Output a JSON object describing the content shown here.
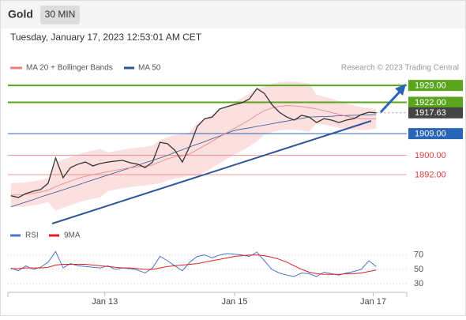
{
  "chart_data": {
    "type": "line",
    "title": "Gold",
    "timeframe": "30 MIN",
    "subtitle": "Tuesday, January 17, 2023 12:53:01 AM CET",
    "credit": "Research © 2023 Trading Central",
    "x": [
      0,
      1,
      2,
      3,
      4,
      5,
      6,
      7,
      8,
      9,
      10,
      11,
      12,
      13,
      14,
      15,
      16,
      17,
      18,
      19,
      20,
      21,
      22,
      23,
      24,
      25,
      26,
      27,
      28,
      29,
      30,
      31,
      32,
      33,
      34,
      35,
      36,
      37,
      38,
      39,
      40,
      41,
      42,
      43,
      44,
      45,
      46,
      47,
      48,
      49
    ],
    "xlim": [
      -0.4,
      53.1
    ],
    "xticks": [
      {
        "value": 12.6,
        "label": "Jan 13"
      },
      {
        "value": 30.0,
        "label": "Jan 15"
      },
      {
        "value": 48.6,
        "label": "Jan 17"
      }
    ],
    "ylim": [
      1871,
      1933.3
    ],
    "price": {
      "color": "#333333",
      "values": [
        1883.2,
        1882.5,
        1884.1,
        1885.1,
        1885.8,
        1888.4,
        1898.9,
        1890.7,
        1894.9,
        1896.3,
        1897.2,
        1895.6,
        1896.6,
        1897.2,
        1897.6,
        1897.9,
        1896.9,
        1896.3,
        1894.9,
        1897.2,
        1905.4,
        1904.8,
        1902.1,
        1897.2,
        1903.8,
        1912.0,
        1915.2,
        1915.9,
        1919.2,
        1920.2,
        1921.1,
        1921.8,
        1923.4,
        1927.7,
        1925.7,
        1921.1,
        1917.9,
        1915.9,
        1914.6,
        1916.6,
        1915.9,
        1913.6,
        1915.2,
        1914.6,
        1913.6,
        1914.6,
        1915.2,
        1916.9,
        1917.9,
        1917.63
      ]
    },
    "ma20": {
      "name": "MA 20 + Bollinger Bands",
      "color": "#f08080",
      "band_color": "#fbd5d5",
      "values": [
        1883.5,
        1883.6,
        1883.8,
        1884.2,
        1884.8,
        1885.6,
        1887.0,
        1888.2,
        1889.3,
        1890.4,
        1891.3,
        1892.0,
        1892.6,
        1893.2,
        1893.8,
        1894.3,
        1894.8,
        1895.2,
        1895.5,
        1896.0,
        1897.3,
        1898.5,
        1899.4,
        1899.8,
        1900.6,
        1902.3,
        1904.1,
        1905.8,
        1907.7,
        1909.5,
        1911.2,
        1912.9,
        1914.7,
        1916.8,
        1918.5,
        1919.6,
        1920.3,
        1920.6,
        1920.5,
        1920.2,
        1919.8,
        1919.2,
        1918.5,
        1917.8,
        1917.0,
        1916.2,
        1915.6,
        1915.2,
        1915.1,
        1915.2
      ],
      "upper": [
        1888.5,
        1888.6,
        1888.8,
        1889.2,
        1889.8,
        1890.6,
        1897.0,
        1898.2,
        1899.3,
        1900.4,
        1901.3,
        1902.0,
        1902.6,
        1901.2,
        1901.8,
        1902.3,
        1902.8,
        1903.2,
        1903.5,
        1904.0,
        1906.3,
        1907.5,
        1908.4,
        1908.8,
        1909.6,
        1913.3,
        1915.1,
        1916.8,
        1918.7,
        1920.5,
        1922.2,
        1923.9,
        1925.7,
        1927.8,
        1928.5,
        1929.6,
        1930.3,
        1930.6,
        1930.5,
        1930.2,
        1929.8,
        1925.2,
        1924.3,
        1923.5,
        1922.5,
        1921.5,
        1920.7,
        1920.0,
        1919.6,
        1919.2
      ],
      "lower": [
        1878.5,
        1878.6,
        1878.8,
        1879.2,
        1879.8,
        1880.6,
        1877.0,
        1878.2,
        1879.3,
        1880.4,
        1881.3,
        1882.0,
        1882.6,
        1885.2,
        1885.8,
        1886.3,
        1886.8,
        1887.2,
        1887.5,
        1888.0,
        1888.3,
        1889.5,
        1890.4,
        1890.8,
        1891.6,
        1891.3,
        1893.1,
        1894.8,
        1896.7,
        1898.5,
        1900.2,
        1901.9,
        1903.7,
        1905.8,
        1908.5,
        1909.6,
        1910.3,
        1910.6,
        1910.5,
        1910.2,
        1909.8,
        1913.2,
        1912.7,
        1912.1,
        1911.5,
        1910.9,
        1910.5,
        1910.4,
        1910.6,
        1911.2
      ]
    },
    "ma50": {
      "name": "MA 50",
      "color": "#2f5597",
      "values": [
        1878.6,
        1879.6,
        1880.6,
        1881.6,
        1882.7,
        1883.7,
        1884.7,
        1885.7,
        1886.7,
        1887.7,
        1888.8,
        1889.8,
        1890.8,
        1891.8,
        1892.8,
        1893.8,
        1894.8,
        1895.9,
        1896.9,
        1897.9,
        1898.9,
        1900.0,
        1901.2,
        1902.3,
        1903.5,
        1904.6,
        1905.7,
        1906.9,
        1908.0,
        1909.2,
        1910.3,
        1910.9,
        1911.4,
        1912.0,
        1912.5,
        1913.1,
        1913.7,
        1914.2,
        1914.8,
        1915.3,
        1915.9,
        1916.0,
        1916.1,
        1916.2,
        1916.4,
        1916.5,
        1916.6,
        1916.7,
        1916.8,
        1916.9
      ]
    },
    "levels": {
      "values": [
        1929,
        1922,
        1917.63,
        1909,
        1900,
        1892
      ],
      "value_labels": [
        "1929.00",
        "1922.00",
        "1917.63",
        "1909.00",
        "1900.00",
        "1892.00"
      ],
      "colors": [
        "#5aa51e",
        "#5aa51e",
        "#444444",
        "#2a66b8",
        "#e04040",
        "#e04040"
      ],
      "label_style": [
        "box",
        "box",
        "box",
        "box",
        "text",
        "text"
      ]
    },
    "rsi": {
      "ylim": [
        18,
        84
      ],
      "yticks": [
        30,
        50,
        70
      ],
      "series": [
        {
          "name": "RSI",
          "color": "#4a72d0",
          "values": [
            52,
            48,
            55,
            50,
            53,
            60,
            75,
            52,
            58,
            55,
            54,
            53,
            52,
            55,
            50,
            52,
            51,
            49,
            45,
            52,
            68,
            62,
            55,
            48,
            60,
            68,
            70,
            66,
            70,
            72,
            71,
            70,
            68,
            74,
            62,
            50,
            45,
            42,
            40,
            45,
            44,
            40,
            46,
            44,
            42,
            45,
            47,
            50,
            62,
            54
          ]
        },
        {
          "name": "9MA",
          "color": "#e02020",
          "values": [
            51,
            51,
            52,
            52,
            52,
            53,
            56,
            57,
            57,
            57,
            57,
            56,
            55,
            54,
            53,
            52,
            52,
            51,
            50,
            50,
            52,
            54,
            55,
            56,
            57,
            58,
            60,
            62,
            64,
            66,
            68,
            69,
            70,
            70,
            69,
            67,
            64,
            60,
            55,
            50,
            46,
            44,
            43,
            43,
            43,
            44,
            44,
            45,
            47,
            49
          ]
        }
      ]
    }
  }
}
